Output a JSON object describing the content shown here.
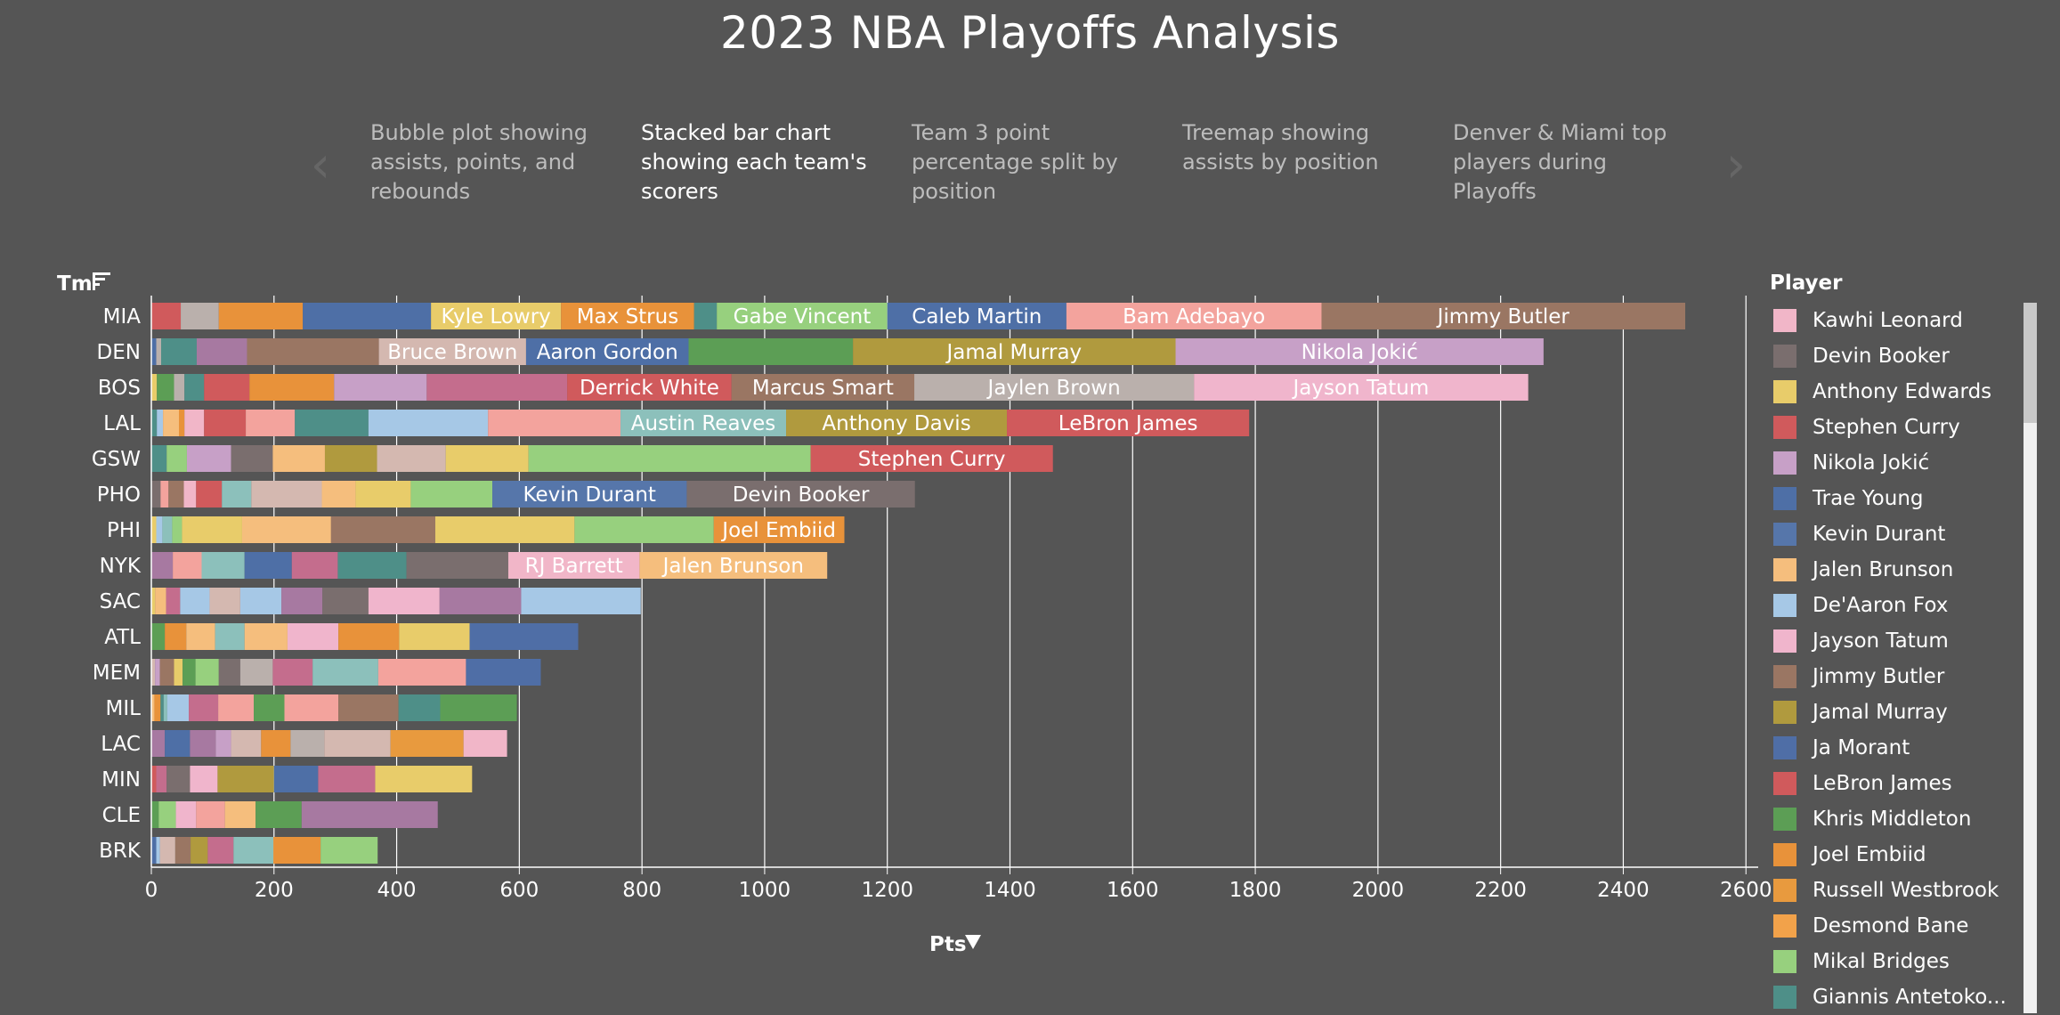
{
  "page": {
    "title": "2023 NBA Playoffs Analysis"
  },
  "nav": {
    "prev_icon": "chevron-left-icon",
    "next_icon": "chevron-right-icon",
    "story_points": [
      {
        "label": "Bubble plot showing assists, points, and rebounds",
        "active": false
      },
      {
        "label": "Stacked bar chart showing each team's scorers",
        "active": true
      },
      {
        "label": "Team 3 point percentage split by position",
        "active": false
      },
      {
        "label": "Treemap showing assists by position",
        "active": false
      },
      {
        "label": "Denver & Miami top players during Playoffs",
        "active": false
      }
    ]
  },
  "legend": {
    "title": "Player",
    "items": [
      {
        "label": "Kawhi Leonard",
        "color": "#f1b6c8"
      },
      {
        "label": "Devin Booker",
        "color": "#7a6e6e"
      },
      {
        "label": "Anthony Edwards",
        "color": "#e8cc6a"
      },
      {
        "label": "Stephen Curry",
        "color": "#d05a5c"
      },
      {
        "label": "Nikola Jokić",
        "color": "#c7a0c7"
      },
      {
        "label": "Trae Young",
        "color": "#4e6fa6"
      },
      {
        "label": "Kevin Durant",
        "color": "#5676aa"
      },
      {
        "label": "Jalen Brunson",
        "color": "#f5be7d"
      },
      {
        "label": "De'Aaron Fox",
        "color": "#a6c8e6"
      },
      {
        "label": "Jayson Tatum",
        "color": "#f0b5cc"
      },
      {
        "label": "Jimmy Butler",
        "color": "#9a7663"
      },
      {
        "label": "Jamal Murray",
        "color": "#b09a3e"
      },
      {
        "label": "Ja Morant",
        "color": "#4f6ea6"
      },
      {
        "label": "LeBron James",
        "color": "#d05a5c"
      },
      {
        "label": "Khris Middleton",
        "color": "#5c9e55"
      },
      {
        "label": "Joel Embiid",
        "color": "#e8923a"
      },
      {
        "label": "Russell Westbrook",
        "color": "#e89a3e"
      },
      {
        "label": "Desmond Bane",
        "color": "#f2a24a"
      },
      {
        "label": "Mikal Bridges",
        "color": "#97d07e"
      },
      {
        "label": "Giannis Antetoko...",
        "color": "#4e8f88"
      }
    ]
  },
  "chart_data": {
    "type": "bar",
    "orientation": "horizontal",
    "stacked": true,
    "xlabel": "Pts",
    "ylabel": "Tm",
    "sort_icon": "sort-descending-icon",
    "xlim": [
      0,
      2620
    ],
    "xticks": [
      0,
      200,
      400,
      600,
      800,
      1000,
      1200,
      1400,
      1600,
      1800,
      2000,
      2200,
      2400,
      2600
    ],
    "grid": true,
    "legend": "right",
    "teams": [
      {
        "team": "MIA",
        "segments": [
          {
            "value": 48,
            "color": "#d05a5c"
          },
          {
            "value": 62,
            "color": "#bab0ac"
          },
          {
            "value": 137,
            "color": "#e8923a"
          },
          {
            "value": 209,
            "color": "#4e6fa6"
          },
          {
            "value": 212,
            "color": "#e8cc6a",
            "player": "Kyle Lowry"
          },
          {
            "value": 217,
            "color": "#e8923a",
            "player": "Max Strus"
          },
          {
            "value": 37,
            "color": "#4e8f88"
          },
          {
            "value": 278,
            "color": "#97d07e",
            "player": "Gabe Vincent"
          },
          {
            "value": 292,
            "color": "#4e6fa6",
            "player": "Caleb Martin"
          },
          {
            "value": 416,
            "color": "#f3a39d",
            "player": "Bam Adebayo"
          },
          {
            "value": 593,
            "color": "#9a7663",
            "player": "Jimmy Butler"
          }
        ]
      },
      {
        "team": "DEN",
        "segments": [
          {
            "value": 8,
            "color": "#4e6fa6"
          },
          {
            "value": 8,
            "color": "#bab0ac"
          },
          {
            "value": 58,
            "color": "#4e8f88"
          },
          {
            "value": 82,
            "color": "#a779a1"
          },
          {
            "value": 215,
            "color": "#9a7663"
          },
          {
            "value": 240,
            "color": "#d4b8b0",
            "player": "Bruce Brown"
          },
          {
            "value": 265,
            "color": "#4e6fa6",
            "player": "Aaron Gordon"
          },
          {
            "value": 268,
            "color": "#5c9e55"
          },
          {
            "value": 526,
            "color": "#b09a3e",
            "player": "Jamal Murray"
          },
          {
            "value": 600,
            "color": "#c7a0c7",
            "player": "Nikola Jokić"
          }
        ]
      },
      {
        "team": "BOS",
        "segments": [
          {
            "value": 9,
            "color": "#e8cc6a"
          },
          {
            "value": 28,
            "color": "#5c9e55"
          },
          {
            "value": 17,
            "color": "#bab0ac"
          },
          {
            "value": 32,
            "color": "#4e8f88"
          },
          {
            "value": 74,
            "color": "#d05a5c"
          },
          {
            "value": 138,
            "color": "#e8923a"
          },
          {
            "value": 151,
            "color": "#c7a0c7"
          },
          {
            "value": 229,
            "color": "#c46d8d"
          },
          {
            "value": 268,
            "color": "#d05a5c",
            "player": "Derrick White"
          },
          {
            "value": 298,
            "color": "#9a7663",
            "player": "Marcus Smart"
          },
          {
            "value": 456,
            "color": "#bab0ac",
            "player": "Jaylen Brown"
          },
          {
            "value": 545,
            "color": "#f0b5cc",
            "player": "Jayson Tatum"
          }
        ]
      },
      {
        "team": "LAL",
        "segments": [
          {
            "value": 9,
            "color": "#4e8f88"
          },
          {
            "value": 10,
            "color": "#a6c8e6"
          },
          {
            "value": 26,
            "color": "#f5be7d"
          },
          {
            "value": 9,
            "color": "#e8923a"
          },
          {
            "value": 32,
            "color": "#f1b6c8"
          },
          {
            "value": 68,
            "color": "#d05a5c"
          },
          {
            "value": 80,
            "color": "#f3a39d"
          },
          {
            "value": 120,
            "color": "#4e8f88"
          },
          {
            "value": 195,
            "color": "#a6c8e6"
          },
          {
            "value": 216,
            "color": "#f3a39d"
          },
          {
            "value": 270,
            "color": "#8cc0bb",
            "player": "Austin Reaves"
          },
          {
            "value": 360,
            "color": "#b09a3e",
            "player": "Anthony Davis"
          },
          {
            "value": 395,
            "color": "#d05a5c",
            "player": "LeBron James"
          }
        ]
      },
      {
        "team": "GSW",
        "segments": [
          {
            "value": 25,
            "color": "#4e8f88"
          },
          {
            "value": 33,
            "color": "#97d07e"
          },
          {
            "value": 72,
            "color": "#c7a0c7"
          },
          {
            "value": 68,
            "color": "#7a6e6e"
          },
          {
            "value": 85,
            "color": "#f5be7d"
          },
          {
            "value": 85,
            "color": "#b09a3e"
          },
          {
            "value": 112,
            "color": "#d4b8b0"
          },
          {
            "value": 135,
            "color": "#e8cc6a"
          },
          {
            "value": 460,
            "color": "#97d07e"
          },
          {
            "value": 395,
            "color": "#d05a5c",
            "player": "Stephen Curry"
          }
        ]
      },
      {
        "team": "PHO",
        "segments": [
          {
            "value": 15,
            "color": "#7a6e6e"
          },
          {
            "value": 13,
            "color": "#f3a39d"
          },
          {
            "value": 25,
            "color": "#9a7663"
          },
          {
            "value": 20,
            "color": "#f1b6c8"
          },
          {
            "value": 42,
            "color": "#d05a5c"
          },
          {
            "value": 48,
            "color": "#8cc0bb"
          },
          {
            "value": 115,
            "color": "#d4b8b0"
          },
          {
            "value": 55,
            "color": "#f5be7d"
          },
          {
            "value": 90,
            "color": "#e8cc6a"
          },
          {
            "value": 133,
            "color": "#97d07e"
          },
          {
            "value": 317,
            "color": "#5676aa",
            "player": "Kevin Durant"
          },
          {
            "value": 372,
            "color": "#7a6e6e",
            "player": "Devin Booker"
          }
        ]
      },
      {
        "team": "PHI",
        "segments": [
          {
            "value": 8,
            "color": "#e8cc6a"
          },
          {
            "value": 10,
            "color": "#a6c8e6"
          },
          {
            "value": 16,
            "color": "#8cc0bb"
          },
          {
            "value": 16,
            "color": "#97d07e"
          },
          {
            "value": 98,
            "color": "#e8cc6a"
          },
          {
            "value": 145,
            "color": "#f5be7d"
          },
          {
            "value": 170,
            "color": "#9a7663"
          },
          {
            "value": 227,
            "color": "#e8cc6a"
          },
          {
            "value": 227,
            "color": "#97d07e"
          },
          {
            "value": 213,
            "color": "#e8923a",
            "player": "Joel Embiid"
          }
        ]
      },
      {
        "team": "NYK",
        "segments": [
          {
            "value": 35,
            "color": "#a779a1"
          },
          {
            "value": 47,
            "color": "#f3a39d"
          },
          {
            "value": 70,
            "color": "#8cc0bb"
          },
          {
            "value": 77,
            "color": "#4e6fa6"
          },
          {
            "value": 75,
            "color": "#c46d8d"
          },
          {
            "value": 112,
            "color": "#4e8f88"
          },
          {
            "value": 166,
            "color": "#7a6e6e"
          },
          {
            "value": 214,
            "color": "#f1b6c8",
            "player": "RJ Barrett"
          },
          {
            "value": 306,
            "color": "#f5be7d",
            "player": "Jalen Brunson"
          }
        ]
      },
      {
        "team": "SAC",
        "segments": [
          {
            "value": 6,
            "color": "#e8cc6a"
          },
          {
            "value": 18,
            "color": "#f5be7d"
          },
          {
            "value": 23,
            "color": "#c46d8d"
          },
          {
            "value": 48,
            "color": "#a6c8e6"
          },
          {
            "value": 50,
            "color": "#d4b8b0"
          },
          {
            "value": 67,
            "color": "#a6c8e6"
          },
          {
            "value": 67,
            "color": "#a779a1"
          },
          {
            "value": 75,
            "color": "#7a6e6e"
          },
          {
            "value": 116,
            "color": "#f0b5cc"
          },
          {
            "value": 133,
            "color": "#a779a1"
          },
          {
            "value": 195,
            "color": "#a6c8e6"
          }
        ]
      },
      {
        "team": "ATL",
        "segments": [
          {
            "value": 22,
            "color": "#5c9e55"
          },
          {
            "value": 35,
            "color": "#e8923a"
          },
          {
            "value": 47,
            "color": "#f5be7d"
          },
          {
            "value": 48,
            "color": "#8cc0bb"
          },
          {
            "value": 70,
            "color": "#f5be7d"
          },
          {
            "value": 83,
            "color": "#f0b5cc"
          },
          {
            "value": 99,
            "color": "#e8923a"
          },
          {
            "value": 115,
            "color": "#e8cc6a"
          },
          {
            "value": 177,
            "color": "#4f6ea6"
          }
        ]
      },
      {
        "team": "MEM",
        "segments": [
          {
            "value": 6,
            "color": "#d4b8b0"
          },
          {
            "value": 8,
            "color": "#c7a0c7"
          },
          {
            "value": 23,
            "color": "#9a7663"
          },
          {
            "value": 14,
            "color": "#e8cc6a"
          },
          {
            "value": 21,
            "color": "#5c9e55"
          },
          {
            "value": 38,
            "color": "#97d07e"
          },
          {
            "value": 35,
            "color": "#7a6e6e"
          },
          {
            "value": 53,
            "color": "#bab0ac"
          },
          {
            "value": 65,
            "color": "#c46d8d"
          },
          {
            "value": 107,
            "color": "#8cc0bb"
          },
          {
            "value": 143,
            "color": "#f3a39d"
          },
          {
            "value": 122,
            "color": "#4f6ea6"
          }
        ]
      },
      {
        "team": "MIL",
        "segments": [
          {
            "value": 5,
            "color": "#f5be7d"
          },
          {
            "value": 10,
            "color": "#e8923a"
          },
          {
            "value": 5,
            "color": "#4e8f88"
          },
          {
            "value": 6,
            "color": "#8cc0bb"
          },
          {
            "value": 35,
            "color": "#a6c8e6"
          },
          {
            "value": 48,
            "color": "#c46d8d"
          },
          {
            "value": 58,
            "color": "#f3a39d"
          },
          {
            "value": 50,
            "color": "#5c9e55"
          },
          {
            "value": 88,
            "color": "#f3a39d"
          },
          {
            "value": 98,
            "color": "#9a7663"
          },
          {
            "value": 68,
            "color": "#4e8f88"
          },
          {
            "value": 125,
            "color": "#5c9e55"
          }
        ]
      },
      {
        "team": "LAC",
        "segments": [
          {
            "value": 22,
            "color": "#a779a1"
          },
          {
            "value": 41,
            "color": "#4e6fa6"
          },
          {
            "value": 42,
            "color": "#a779a1"
          },
          {
            "value": 25,
            "color": "#c7a0c7"
          },
          {
            "value": 49,
            "color": "#d4b8b0"
          },
          {
            "value": 48,
            "color": "#e8923a"
          },
          {
            "value": 55,
            "color": "#bab0ac"
          },
          {
            "value": 108,
            "color": "#d4b8b0"
          },
          {
            "value": 119,
            "color": "#e89a3e"
          },
          {
            "value": 71,
            "color": "#f1b6c8"
          }
        ]
      },
      {
        "team": "MIN",
        "segments": [
          {
            "value": 8,
            "color": "#d05a5c"
          },
          {
            "value": 17,
            "color": "#c46d8d"
          },
          {
            "value": 38,
            "color": "#7a6e6e"
          },
          {
            "value": 45,
            "color": "#f0b5cc"
          },
          {
            "value": 92,
            "color": "#b09a3e"
          },
          {
            "value": 72,
            "color": "#4e6fa6"
          },
          {
            "value": 93,
            "color": "#c46d8d"
          },
          {
            "value": 158,
            "color": "#e8cc6a"
          }
        ]
      },
      {
        "team": "CLE",
        "segments": [
          {
            "value": 12,
            "color": "#5c9e55"
          },
          {
            "value": 28,
            "color": "#97d07e"
          },
          {
            "value": 33,
            "color": "#f0b5cc"
          },
          {
            "value": 47,
            "color": "#f3a39d"
          },
          {
            "value": 50,
            "color": "#f5be7d"
          },
          {
            "value": 75,
            "color": "#5c9e55"
          },
          {
            "value": 222,
            "color": "#a779a1"
          }
        ]
      },
      {
        "team": "BRK",
        "segments": [
          {
            "value": 8,
            "color": "#4e6fa6"
          },
          {
            "value": 6,
            "color": "#a6c8e6"
          },
          {
            "value": 25,
            "color": "#d4b8b0"
          },
          {
            "value": 25,
            "color": "#9a7663"
          },
          {
            "value": 28,
            "color": "#b09a3e"
          },
          {
            "value": 42,
            "color": "#c46d8d"
          },
          {
            "value": 65,
            "color": "#8cc0bb"
          },
          {
            "value": 77,
            "color": "#e8923a"
          },
          {
            "value": 93,
            "color": "#97d07e"
          }
        ]
      }
    ]
  }
}
